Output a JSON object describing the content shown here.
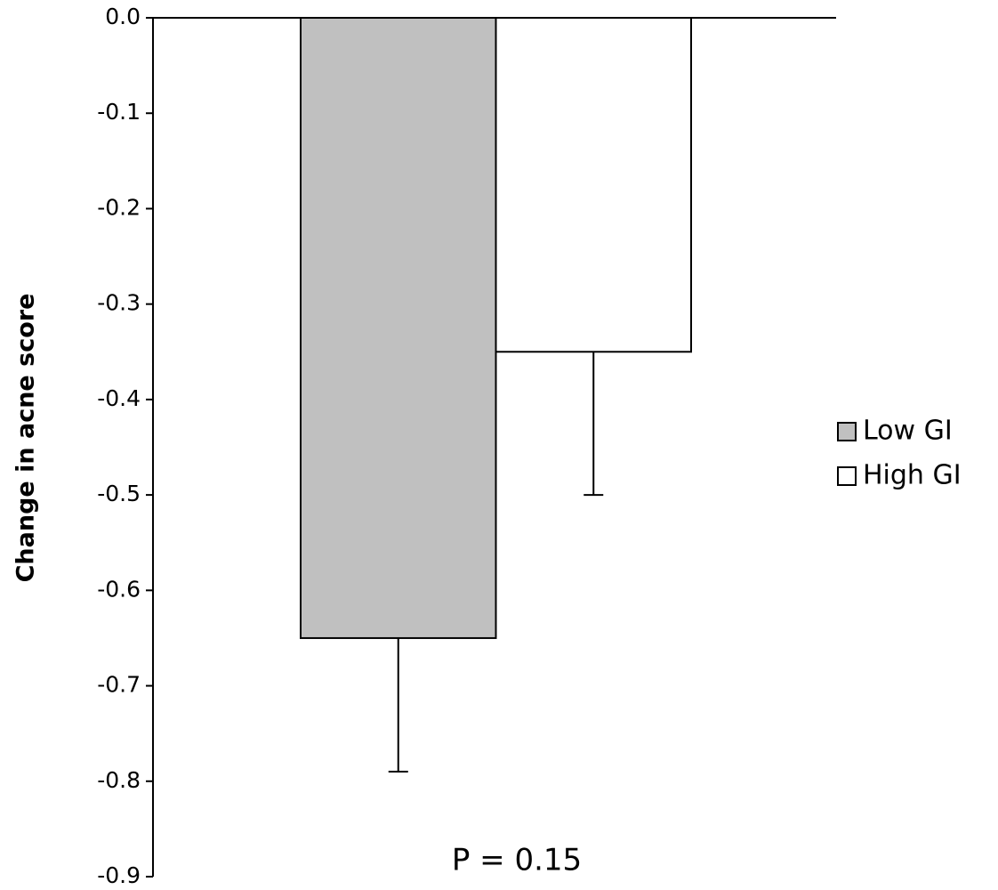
{
  "chart_data": {
    "type": "bar",
    "y_label": "Change in acne score",
    "annotation": "P = 0.15",
    "categories": [
      null
    ],
    "series": [
      {
        "name": "Low GI",
        "color": "#c0c0c0",
        "values": [
          -0.65
        ],
        "error": [
          0.14
        ]
      },
      {
        "name": "High GI",
        "color": "#ffffff",
        "values": [
          -0.35
        ],
        "error": [
          0.15
        ]
      }
    ],
    "ylim": [
      -0.9,
      0
    ],
    "yticks": [
      {
        "value": 0,
        "label": "0.0"
      },
      -0.1,
      -0.2,
      -0.3,
      -0.4,
      -0.5,
      -0.6,
      -0.7,
      -0.8,
      -0.9
    ],
    "legend": "right",
    "grid": false
  }
}
